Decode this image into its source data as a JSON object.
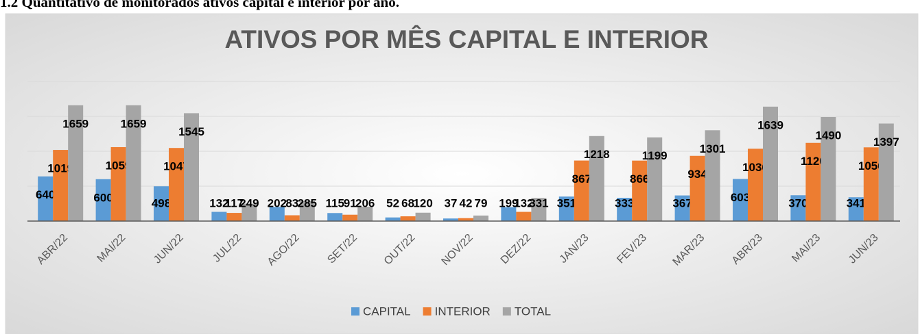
{
  "heading": "1.2 Quantitativo de monitorados ativos capital e interior por ano.",
  "chart_data": {
    "type": "bar",
    "title": "ATIVOS POR MÊS CAPITAL E INTERIOR",
    "categories": [
      "ABR/22",
      "MAI/22",
      "JUN/22",
      "JUL/22",
      "AGO/22",
      "SET/22",
      "OUT/22",
      "NOV/22",
      "DEZ/22",
      "JAN/23",
      "FEV/23",
      "MAR/23",
      "ABR/23",
      "MAI/23",
      "JUN/23"
    ],
    "series": [
      {
        "name": "CAPITAL",
        "color": "#5b9bd5",
        "values": [
          640,
          600,
          498,
          132,
          202,
          115,
          52,
          37,
          199,
          351,
          333,
          367,
          603,
          370,
          341
        ]
      },
      {
        "name": "INTERIOR",
        "color": "#ed7d31",
        "values": [
          1019,
          1059,
          1047,
          117,
          83,
          91,
          68,
          42,
          132,
          867,
          866,
          934,
          1036,
          1120,
          1056
        ]
      },
      {
        "name": "TOTAL",
        "color": "#a5a5a5",
        "values": [
          1659,
          1659,
          1545,
          249,
          285,
          206,
          120,
          79,
          331,
          1218,
          1199,
          1301,
          1639,
          1490,
          1397
        ]
      }
    ],
    "ylim": [
      0,
      2000
    ],
    "yticks": [
      0,
      500,
      1000,
      1500,
      2000
    ],
    "grid": true,
    "legend": "bottom"
  }
}
